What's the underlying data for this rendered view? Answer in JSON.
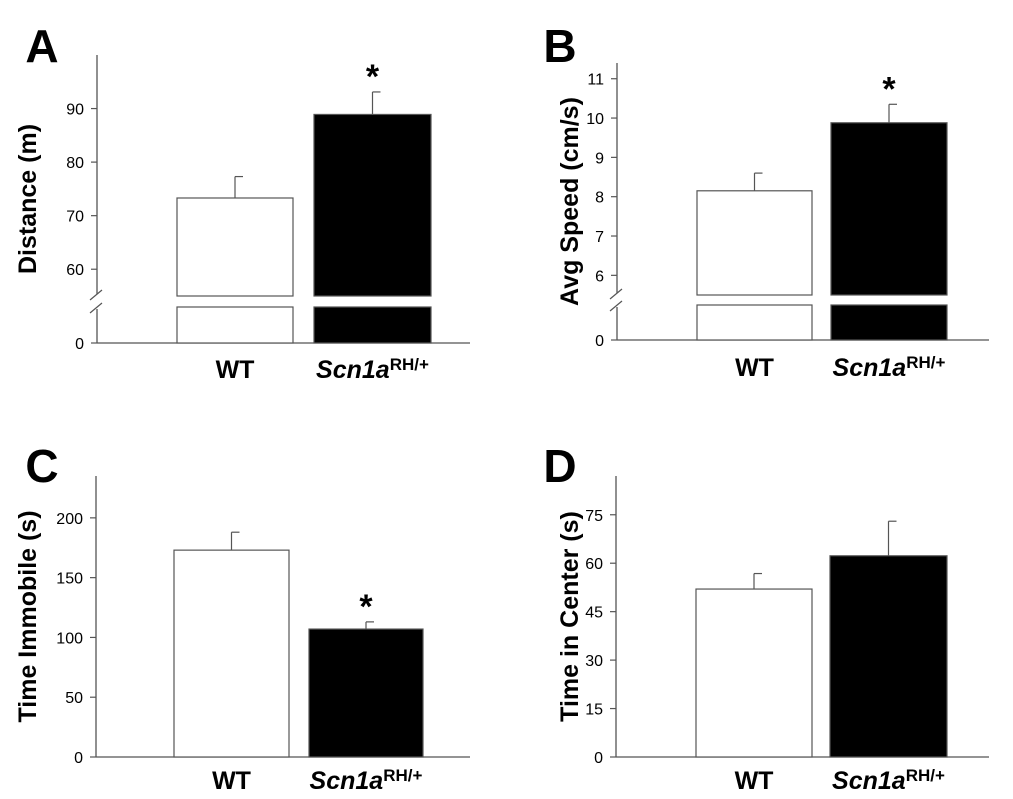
{
  "chart_data": [
    {
      "panel": "A",
      "type": "bar",
      "categories": [
        "WT",
        "Scn1a"
      ],
      "category_superscripts": [
        "",
        "RH/+"
      ],
      "category_italic": [
        false,
        true
      ],
      "values": [
        73.3,
        88.9
      ],
      "errors": [
        4.0,
        4.2
      ],
      "fills": [
        "#ffffff",
        "#000000"
      ],
      "significance": [
        "",
        "*"
      ],
      "ylabel": "Distance (m)",
      "xlabel": "",
      "ylim": [
        55,
        100
      ],
      "yticks": [
        60,
        70,
        80,
        90
      ],
      "axis_break": true,
      "break_origin_label": "0"
    },
    {
      "panel": "B",
      "type": "bar",
      "categories": [
        "WT",
        "Scn1a"
      ],
      "category_superscripts": [
        "",
        "RH/+"
      ],
      "category_italic": [
        false,
        true
      ],
      "values": [
        8.15,
        9.88
      ],
      "errors": [
        0.45,
        0.47
      ],
      "fills": [
        "#ffffff",
        "#000000"
      ],
      "significance": [
        "",
        "*"
      ],
      "ylabel": "Avg Speed (cm/s)",
      "xlabel": "",
      "ylim": [
        5.5,
        11.4
      ],
      "yticks": [
        6,
        7,
        8,
        9,
        10,
        11
      ],
      "axis_break": true,
      "break_origin_label": "0"
    },
    {
      "panel": "C",
      "type": "bar",
      "categories": [
        "WT",
        "Scn1a"
      ],
      "category_superscripts": [
        "",
        "RH/+"
      ],
      "category_italic": [
        false,
        true
      ],
      "values": [
        173,
        107
      ],
      "errors": [
        15,
        6
      ],
      "fills": [
        "#ffffff",
        "#000000"
      ],
      "significance": [
        "",
        "*"
      ],
      "ylabel": "Time Immobile (s)",
      "xlabel": "",
      "ylim": [
        0,
        235
      ],
      "yticks": [
        0,
        50,
        100,
        150,
        200
      ],
      "axis_break": false
    },
    {
      "panel": "D",
      "type": "bar",
      "categories": [
        "WT",
        "Scn1a"
      ],
      "category_superscripts": [
        "",
        "RH/+"
      ],
      "category_italic": [
        false,
        true
      ],
      "values": [
        52,
        62.3
      ],
      "errors": [
        4.8,
        10.7
      ],
      "fills": [
        "#ffffff",
        "#000000"
      ],
      "significance": [
        "",
        ""
      ],
      "ylabel": "Time in Center (s)",
      "xlabel": "",
      "ylim": [
        0,
        87
      ],
      "yticks": [
        0,
        15,
        30,
        45,
        60,
        75
      ],
      "axis_break": false
    }
  ],
  "colors": {
    "axis": "#555555",
    "bar_stroke": "#555555",
    "text": "#000000"
  }
}
